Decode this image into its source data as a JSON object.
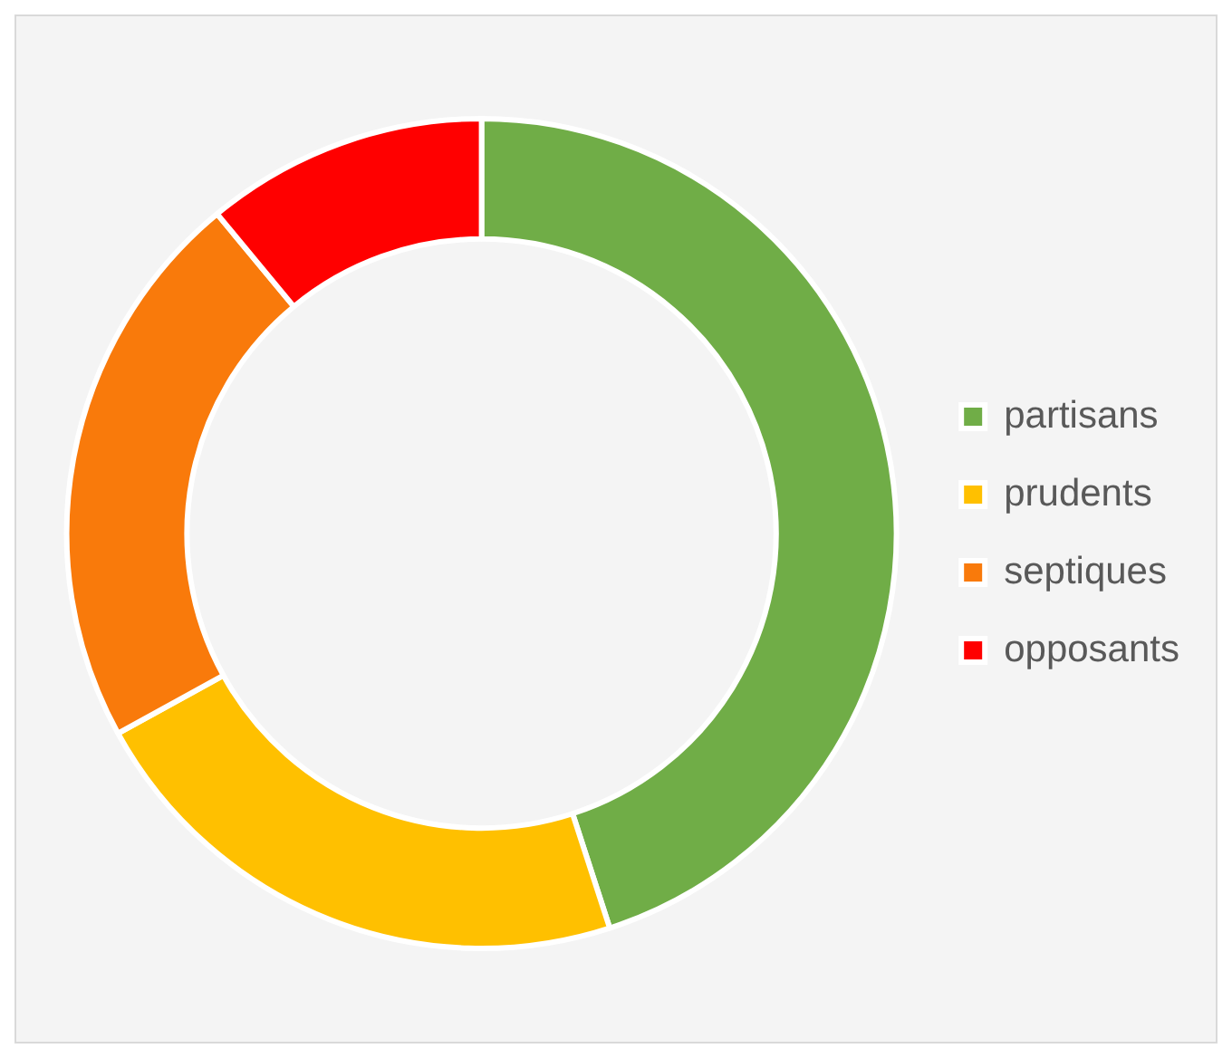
{
  "chart_data": {
    "type": "donut",
    "categories": [
      "partisans",
      "prudents",
      "septiques",
      "opposants"
    ],
    "values": [
      45,
      22,
      22,
      11
    ],
    "colors": [
      "#70ad47",
      "#ffc000",
      "#f97a0b",
      "#ff0000"
    ],
    "legend": "right"
  }
}
